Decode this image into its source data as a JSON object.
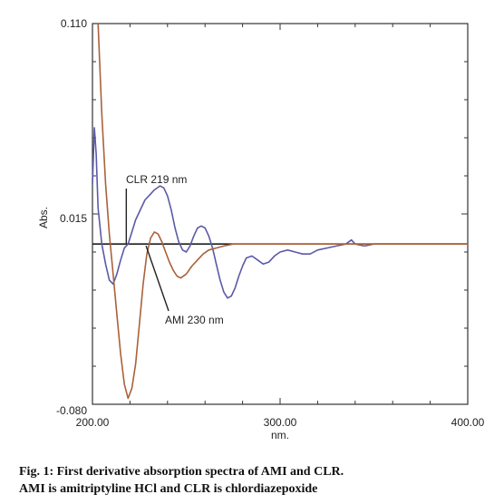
{
  "caption": {
    "line1": "Fig. 1: First derivative absorption spectra of AMI and CLR.",
    "line2": "AMI is amitriptyline HCl and CLR is chlordiazepoxide"
  },
  "chart_data": {
    "type": "line",
    "title": "",
    "xlabel": "nm.",
    "ylabel": "Abs.",
    "xlim": [
      200,
      400
    ],
    "ylim": [
      -0.08,
      0.11
    ],
    "x_ticks": [
      "200.00",
      "300.00",
      "400.00"
    ],
    "y_ticks": [
      "0.110",
      "0.015",
      "-0.080"
    ],
    "baseline": 0.0,
    "grid": false,
    "annotations": [
      {
        "text": "CLR 219 nm",
        "x": 219,
        "y": 0.0
      },
      {
        "text": "AMI 230 nm",
        "x": 230,
        "y": 0.0
      }
    ],
    "series": [
      {
        "name": "CLR",
        "color": "#5a5aa8",
        "points": [
          [
            200,
            0.03
          ],
          [
            201,
            0.058
          ],
          [
            202,
            0.045
          ],
          [
            203,
            0.018
          ],
          [
            205,
            0.0
          ],
          [
            207,
            -0.01
          ],
          [
            209,
            -0.018
          ],
          [
            211,
            -0.02
          ],
          [
            213,
            -0.015
          ],
          [
            215,
            -0.008
          ],
          [
            217,
            -0.002
          ],
          [
            219,
            0.0
          ],
          [
            221,
            0.006
          ],
          [
            223,
            0.012
          ],
          [
            226,
            0.018
          ],
          [
            228,
            0.022
          ],
          [
            231,
            0.025
          ],
          [
            233,
            0.027
          ],
          [
            236,
            0.029
          ],
          [
            238,
            0.028
          ],
          [
            240,
            0.024
          ],
          [
            242,
            0.017
          ],
          [
            244,
            0.008
          ],
          [
            246,
            0.001
          ],
          [
            248,
            -0.003
          ],
          [
            250,
            -0.004
          ],
          [
            252,
            -0.001
          ],
          [
            254,
            0.004
          ],
          [
            256,
            0.008
          ],
          [
            258,
            0.009
          ],
          [
            260,
            0.008
          ],
          [
            262,
            0.004
          ],
          [
            264,
            -0.002
          ],
          [
            266,
            -0.01
          ],
          [
            268,
            -0.018
          ],
          [
            270,
            -0.024
          ],
          [
            272,
            -0.027
          ],
          [
            274,
            -0.026
          ],
          [
            276,
            -0.022
          ],
          [
            278,
            -0.016
          ],
          [
            280,
            -0.011
          ],
          [
            282,
            -0.007
          ],
          [
            285,
            -0.006
          ],
          [
            288,
            -0.008
          ],
          [
            291,
            -0.01
          ],
          [
            294,
            -0.009
          ],
          [
            297,
            -0.006
          ],
          [
            300,
            -0.004
          ],
          [
            304,
            -0.003
          ],
          [
            308,
            -0.004
          ],
          [
            312,
            -0.005
          ],
          [
            316,
            -0.005
          ],
          [
            320,
            -0.003
          ],
          [
            325,
            -0.002
          ],
          [
            330,
            -0.001
          ],
          [
            335,
            0.0
          ],
          [
            338,
            0.002
          ],
          [
            340,
            0.0
          ],
          [
            345,
            -0.001
          ],
          [
            350,
            0.0
          ],
          [
            360,
            0.0
          ],
          [
            370,
            0.0
          ],
          [
            380,
            0.0
          ],
          [
            390,
            0.0
          ],
          [
            400,
            0.0
          ]
        ]
      },
      {
        "name": "AMI",
        "color": "#a9623a",
        "points": [
          [
            203,
            0.11
          ],
          [
            205,
            0.065
          ],
          [
            207,
            0.03
          ],
          [
            209,
            0.005
          ],
          [
            211,
            -0.015
          ],
          [
            213,
            -0.035
          ],
          [
            215,
            -0.055
          ],
          [
            217,
            -0.07
          ],
          [
            219,
            -0.077
          ],
          [
            221,
            -0.072
          ],
          [
            223,
            -0.06
          ],
          [
            225,
            -0.04
          ],
          [
            227,
            -0.02
          ],
          [
            229,
            -0.005
          ],
          [
            231,
            0.003
          ],
          [
            233,
            0.006
          ],
          [
            235,
            0.005
          ],
          [
            237,
            0.001
          ],
          [
            239,
            -0.004
          ],
          [
            241,
            -0.009
          ],
          [
            243,
            -0.013
          ],
          [
            245,
            -0.016
          ],
          [
            247,
            -0.017
          ],
          [
            250,
            -0.015
          ],
          [
            253,
            -0.011
          ],
          [
            256,
            -0.008
          ],
          [
            259,
            -0.005
          ],
          [
            262,
            -0.003
          ],
          [
            266,
            -0.002
          ],
          [
            270,
            -0.001
          ],
          [
            275,
            0.0
          ],
          [
            285,
            0.0
          ],
          [
            300,
            0.0
          ],
          [
            320,
            0.0
          ],
          [
            340,
            0.0
          ],
          [
            360,
            0.0
          ],
          [
            380,
            0.0
          ],
          [
            400,
            0.0
          ]
        ]
      }
    ]
  }
}
